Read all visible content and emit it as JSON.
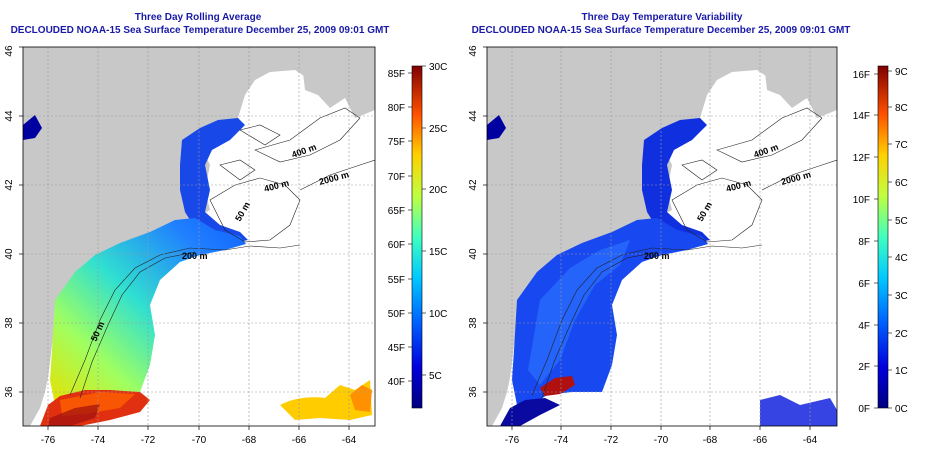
{
  "left_panel": {
    "title": "Three Day Rolling Average",
    "subtitle": "DECLOUDED NOAA-15 Sea Surface Temperature December 25, 2009 09:01 GMT",
    "x_ticks": [
      "-76",
      "-74",
      "-72",
      "-70",
      "-68",
      "-66",
      "-64"
    ],
    "y_ticks": [
      "36",
      "38",
      "40",
      "42",
      "44",
      "46"
    ],
    "contour_labels": [
      "400 m",
      "400 m",
      "2000 m",
      "50 m",
      "50 m",
      "200 m"
    ],
    "colorbar": {
      "f_labels": [
        "85F",
        "80F",
        "75F",
        "70F",
        "65F",
        "60F",
        "55F",
        "50F",
        "45F",
        "40F"
      ],
      "c_labels": [
        "30C",
        "25C",
        "20C",
        "15C",
        "10C",
        "5C"
      ]
    }
  },
  "right_panel": {
    "title": "Three Day Temperature Variability",
    "subtitle": "DECLOUDED NOAA-15 Sea Surface Temperature December 25, 2009 09:01 GMT",
    "x_ticks": [
      "-76",
      "-74",
      "-72",
      "-70",
      "-68",
      "-66",
      "-64"
    ],
    "y_ticks": [
      "36",
      "38",
      "40",
      "42",
      "44",
      "46"
    ],
    "contour_labels": [
      "400 m",
      "400 m",
      "2000 m",
      "50 m",
      "200 m"
    ],
    "colorbar": {
      "f_labels": [
        "16F",
        "14F",
        "12F",
        "10F",
        "8F",
        "6F",
        "4F",
        "2F",
        "0F"
      ],
      "c_labels": [
        "9C",
        "8C",
        "7C",
        "6C",
        "5C",
        "4C",
        "3C",
        "2C",
        "1C",
        "0C"
      ]
    }
  },
  "colors": {
    "title": "#1a1aa8",
    "land": "#c8c8c8",
    "grid": "#9a9a9a"
  }
}
